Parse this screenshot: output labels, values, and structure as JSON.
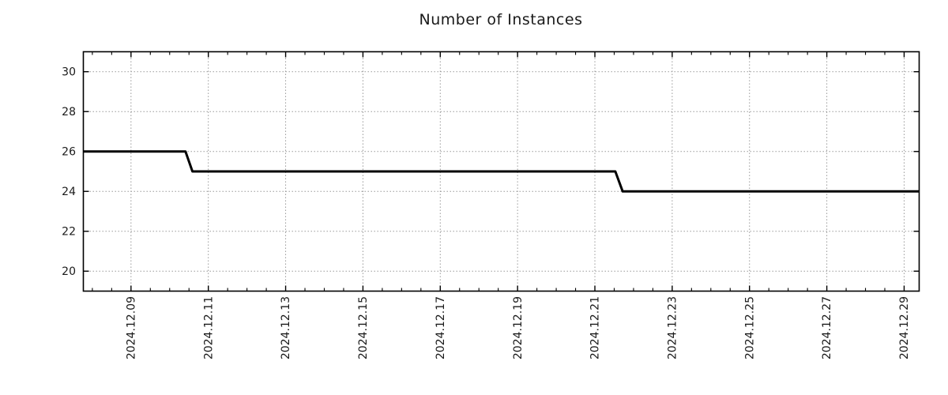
{
  "chart_data": {
    "type": "line",
    "title": "Number of Instances",
    "legend": {
      "show": false
    },
    "grid": {
      "show": true,
      "style": "dotted",
      "color": "#999999"
    },
    "frame_color": "#000000",
    "text_color": "#1a1a1a",
    "background_color": "#ffffff",
    "x_axis": {
      "unit": "day of December 2024 (fractional)",
      "xlim": [
        7.767,
        29.389
      ],
      "major_tick_days": [
        9,
        11,
        13,
        15,
        17,
        19,
        21,
        23,
        25,
        27,
        29
      ],
      "tick_labels": [
        "2024.12.09",
        "2024.12.11",
        "2024.12.13",
        "2024.12.15",
        "2024.12.17",
        "2024.12.19",
        "2024.12.21",
        "2024.12.23",
        "2024.12.25",
        "2024.12.27",
        "2024.12.29"
      ],
      "minor_tick_step_days": 0.5,
      "label_rotation_deg": -90
    },
    "y_axis": {
      "ylim": [
        19,
        31
      ],
      "ticks": [
        20,
        22,
        24,
        26,
        28,
        30
      ],
      "tick_labels": [
        "20",
        "22",
        "24",
        "26",
        "28",
        "30"
      ]
    },
    "series": [
      {
        "name": "instances",
        "color": "#000000",
        "line_width": 3,
        "points": [
          {
            "x": 7.767,
            "y": 26
          },
          {
            "x": 10.41,
            "y": 26
          },
          {
            "x": 10.59,
            "y": 25
          },
          {
            "x": 21.53,
            "y": 25
          },
          {
            "x": 21.72,
            "y": 24
          },
          {
            "x": 29.389,
            "y": 24
          }
        ]
      }
    ]
  }
}
